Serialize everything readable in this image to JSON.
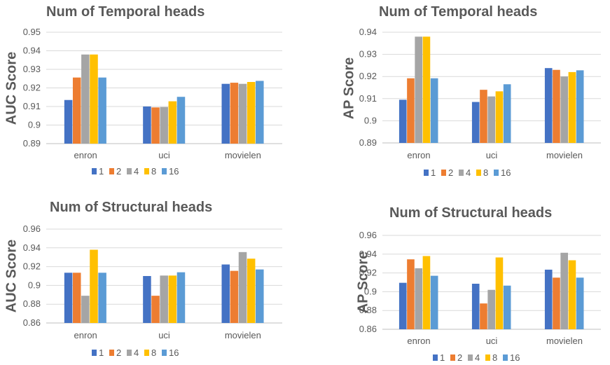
{
  "colors": [
    "#4472c4",
    "#ed7d31",
    "#a5a5a5",
    "#ffc000",
    "#5b9bd5"
  ],
  "chart_data": [
    {
      "type": "bar",
      "title": "Num of Temporal heads",
      "ylabel": "AUC Score",
      "categories": [
        "enron",
        "uci",
        "movielen"
      ],
      "ylim": [
        0.89,
        0.95
      ],
      "yticks": [
        "0.89",
        "0.9",
        "0.91",
        "0.92",
        "0.93",
        "0.94",
        "0.95"
      ],
      "series": [
        {
          "name": "1",
          "values": [
            0.9135,
            0.91,
            0.9222
          ]
        },
        {
          "name": "2",
          "values": [
            0.9256,
            0.9095,
            0.9228
          ]
        },
        {
          "name": "4",
          "values": [
            0.938,
            0.9097,
            0.9222
          ]
        },
        {
          "name": "8",
          "values": [
            0.938,
            0.9128,
            0.9232
          ]
        },
        {
          "name": "16",
          "values": [
            0.9256,
            0.9152,
            0.9238
          ]
        }
      ]
    },
    {
      "type": "bar",
      "title": "Num of Temporal heads",
      "ylabel": "AP Score",
      "categories": [
        "enron",
        "uci",
        "movielen"
      ],
      "ylim": [
        0.89,
        0.94
      ],
      "yticks": [
        "0.89",
        "0.9",
        "0.91",
        "0.92",
        "0.93",
        "0.94"
      ],
      "series": [
        {
          "name": "1",
          "values": [
            0.9095,
            0.9085,
            0.9238
          ]
        },
        {
          "name": "2",
          "values": [
            0.9192,
            0.914,
            0.923
          ]
        },
        {
          "name": "4",
          "values": [
            0.938,
            0.911,
            0.92
          ]
        },
        {
          "name": "8",
          "values": [
            0.938,
            0.9133,
            0.922
          ]
        },
        {
          "name": "16",
          "values": [
            0.9192,
            0.9165,
            0.9228
          ]
        }
      ]
    },
    {
      "type": "bar",
      "title": "Num of Structural heads",
      "ylabel": "AUC Score",
      "categories": [
        "enron",
        "uci",
        "movielen"
      ],
      "ylim": [
        0.86,
        0.96
      ],
      "yticks": [
        "0.86",
        "0.88",
        "0.9",
        "0.92",
        "0.94",
        "0.96"
      ],
      "series": [
        {
          "name": "1",
          "values": [
            0.9135,
            0.91,
            0.9223
          ]
        },
        {
          "name": "2",
          "values": [
            0.9135,
            0.889,
            0.9155
          ]
        },
        {
          "name": "4",
          "values": [
            0.889,
            0.9105,
            0.9355
          ]
        },
        {
          "name": "8",
          "values": [
            0.938,
            0.9105,
            0.9285
          ]
        },
        {
          "name": "16",
          "values": [
            0.9135,
            0.914,
            0.917
          ]
        }
      ]
    },
    {
      "type": "bar",
      "title": "Num of Structural heads",
      "ylabel": "AP Score",
      "categories": [
        "enron",
        "uci",
        "movielen"
      ],
      "ylim": [
        0.86,
        0.96
      ],
      "yticks": [
        "0.86",
        "0.88",
        "0.9",
        "0.92",
        "0.94",
        "0.96"
      ],
      "series": [
        {
          "name": "1",
          "values": [
            0.9095,
            0.9085,
            0.9235
          ]
        },
        {
          "name": "2",
          "values": [
            0.9345,
            0.8875,
            0.915
          ]
        },
        {
          "name": "4",
          "values": [
            0.925,
            0.902,
            0.9415
          ]
        },
        {
          "name": "8",
          "values": [
            0.938,
            0.9365,
            0.9335
          ]
        },
        {
          "name": "16",
          "values": [
            0.917,
            0.9065,
            0.915
          ]
        }
      ]
    }
  ]
}
